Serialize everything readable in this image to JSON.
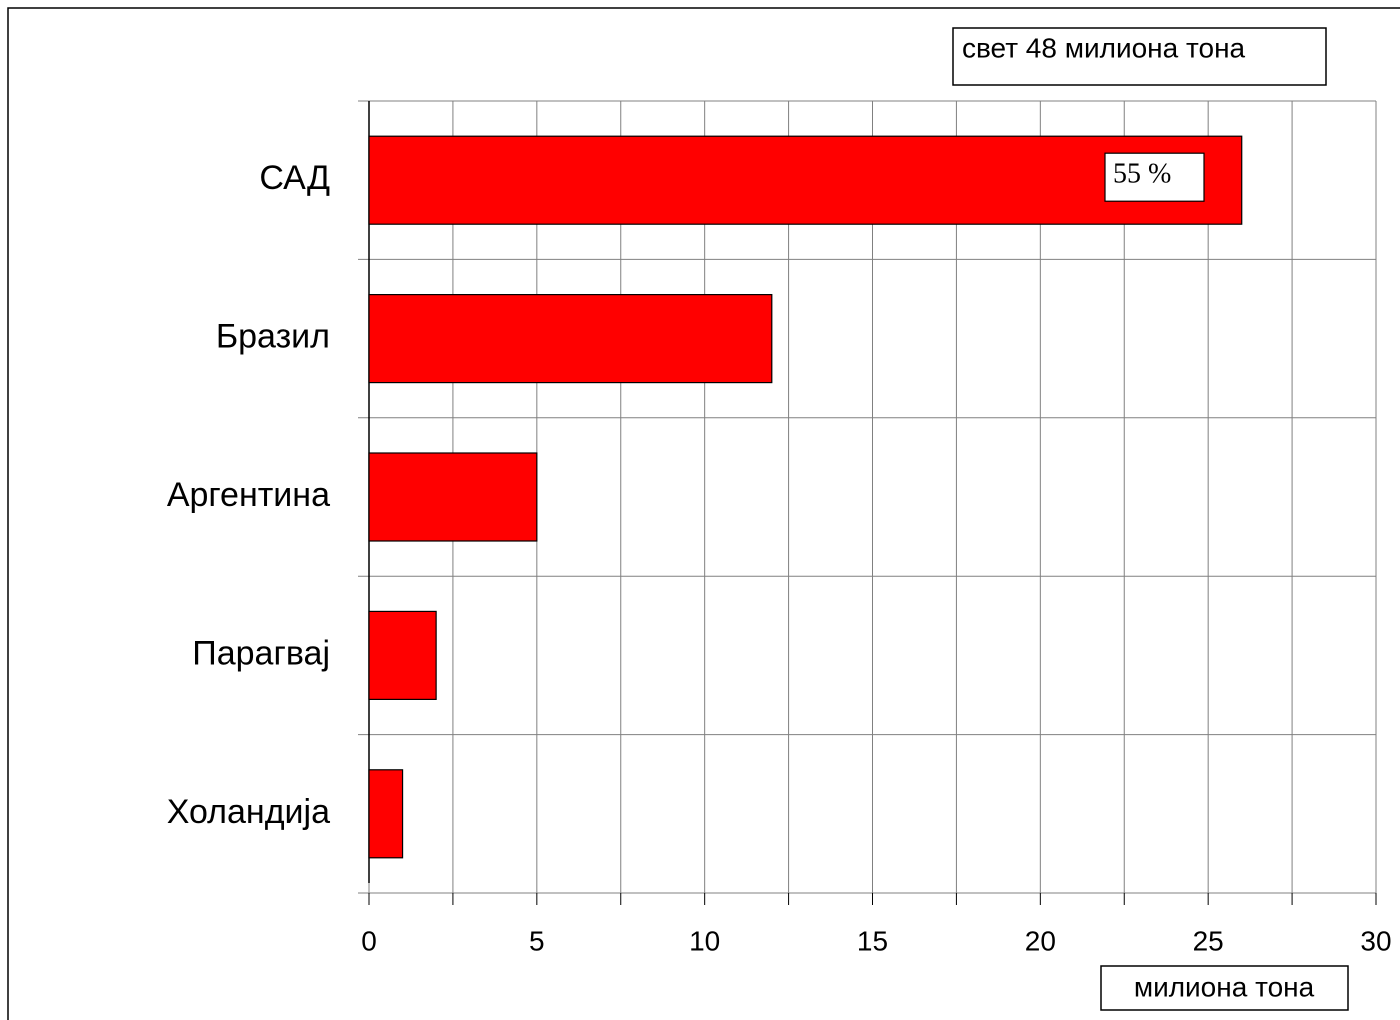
{
  "chart_data": {
    "type": "barh",
    "categories": [
      "САД",
      "Бразил",
      "Аргентина",
      "Парагвај",
      "Холандија"
    ],
    "values": [
      26,
      12,
      5,
      2,
      1
    ],
    "color": "#ff0000",
    "xlabel": "милиона тона",
    "annotations": [
      "свет 48 милиона тона",
      "55 %"
    ],
    "xlim": [
      0,
      30
    ],
    "xticks": [
      0,
      5,
      10,
      15,
      20,
      25,
      30
    ],
    "x_minor_ticks": [
      2.5,
      7.5,
      12.5,
      17.5,
      22.5,
      27.5
    ],
    "grid": true
  }
}
